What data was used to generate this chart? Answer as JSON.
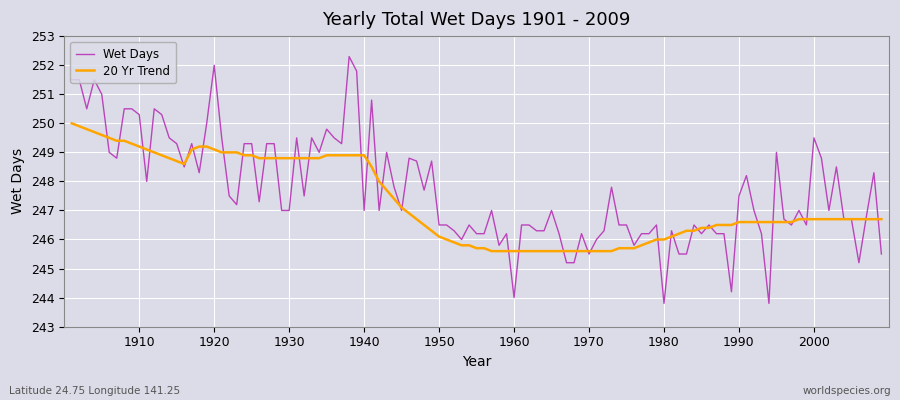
{
  "title": "Yearly Total Wet Days 1901 - 2009",
  "xlabel": "Year",
  "ylabel": "Wet Days",
  "subtitle_left": "Latitude 24.75 Longitude 141.25",
  "subtitle_right": "worldspecies.org",
  "legend_wet": "Wet Days",
  "legend_trend": "20 Yr Trend",
  "color_wet": "#BB44BB",
  "color_trend": "#FFA500",
  "ylim": [
    243,
    253
  ],
  "yticks": [
    243,
    244,
    245,
    246,
    247,
    248,
    249,
    250,
    251,
    252,
    253
  ],
  "years": [
    1901,
    1902,
    1903,
    1904,
    1905,
    1906,
    1907,
    1908,
    1909,
    1910,
    1911,
    1912,
    1913,
    1914,
    1915,
    1916,
    1917,
    1918,
    1919,
    1920,
    1921,
    1922,
    1923,
    1924,
    1925,
    1926,
    1927,
    1928,
    1929,
    1930,
    1931,
    1932,
    1933,
    1934,
    1935,
    1936,
    1937,
    1938,
    1939,
    1940,
    1941,
    1942,
    1943,
    1944,
    1945,
    1946,
    1947,
    1948,
    1949,
    1950,
    1951,
    1952,
    1953,
    1954,
    1955,
    1956,
    1957,
    1958,
    1959,
    1960,
    1961,
    1962,
    1963,
    1964,
    1965,
    1966,
    1967,
    1968,
    1969,
    1970,
    1971,
    1972,
    1973,
    1974,
    1975,
    1976,
    1977,
    1978,
    1979,
    1980,
    1981,
    1982,
    1983,
    1984,
    1985,
    1986,
    1987,
    1988,
    1989,
    1990,
    1991,
    1992,
    1993,
    1994,
    1995,
    1996,
    1997,
    1998,
    1999,
    2000,
    2001,
    2002,
    2003,
    2004,
    2005,
    2006,
    2007,
    2008,
    2009
  ],
  "wet_days": [
    251.5,
    251.5,
    250.5,
    251.5,
    251.0,
    249.0,
    248.8,
    250.5,
    250.5,
    250.3,
    248.0,
    250.5,
    250.3,
    249.5,
    249.3,
    248.5,
    249.3,
    248.3,
    250.0,
    252.0,
    249.5,
    247.5,
    247.2,
    249.3,
    249.3,
    247.3,
    249.3,
    249.3,
    247.0,
    247.0,
    249.5,
    247.5,
    249.5,
    249.0,
    249.8,
    249.5,
    249.3,
    252.3,
    251.8,
    247.0,
    250.8,
    247.0,
    249.0,
    247.8,
    247.0,
    248.8,
    248.7,
    247.7,
    248.7,
    246.5,
    246.5,
    246.3,
    246.0,
    246.5,
    246.2,
    246.2,
    247.0,
    245.8,
    246.2,
    244.0,
    246.5,
    246.5,
    246.3,
    246.3,
    247.0,
    246.2,
    245.2,
    245.2,
    246.2,
    245.5,
    246.0,
    246.3,
    247.8,
    246.5,
    246.5,
    245.8,
    246.2,
    246.2,
    246.5,
    243.8,
    246.3,
    245.5,
    245.5,
    246.5,
    246.2,
    246.5,
    246.2,
    246.2,
    244.2,
    247.5,
    248.2,
    247.0,
    246.2,
    243.8,
    249.0,
    246.7,
    246.5,
    247.0,
    246.5,
    249.5,
    248.8,
    247.0,
    248.5,
    246.7,
    246.7,
    245.2,
    246.8,
    248.3,
    245.5
  ],
  "trend": [
    250.0,
    249.9,
    249.8,
    249.7,
    249.6,
    249.5,
    249.4,
    249.4,
    249.3,
    249.2,
    249.1,
    249.0,
    248.9,
    248.8,
    248.7,
    248.6,
    249.1,
    249.2,
    249.2,
    249.1,
    249.0,
    249.0,
    249.0,
    248.9,
    248.9,
    248.8,
    248.8,
    248.8,
    248.8,
    248.8,
    248.8,
    248.8,
    248.8,
    248.8,
    248.9,
    248.9,
    248.9,
    248.9,
    248.9,
    248.9,
    248.5,
    248.0,
    247.7,
    247.4,
    247.1,
    246.9,
    246.7,
    246.5,
    246.3,
    246.1,
    246.0,
    245.9,
    245.8,
    245.8,
    245.7,
    245.7,
    245.6,
    245.6,
    245.6,
    245.6,
    245.6,
    245.6,
    245.6,
    245.6,
    245.6,
    245.6,
    245.6,
    245.6,
    245.6,
    245.6,
    245.6,
    245.6,
    245.6,
    245.7,
    245.7,
    245.7,
    245.8,
    245.9,
    246.0,
    246.0,
    246.1,
    246.2,
    246.3,
    246.3,
    246.4,
    246.4,
    246.5,
    246.5,
    246.5,
    246.6,
    246.6,
    246.6,
    246.6,
    246.6,
    246.6,
    246.6,
    246.6,
    246.7,
    246.7,
    246.7,
    246.7,
    246.7,
    246.7,
    246.7,
    246.7,
    246.7,
    246.7,
    246.7,
    246.7
  ],
  "fig_bg_color": "#DCDCE8",
  "plot_bg": "#DCDCE8",
  "grid_color": "#FFFFFF",
  "legend_loc": "upper left"
}
